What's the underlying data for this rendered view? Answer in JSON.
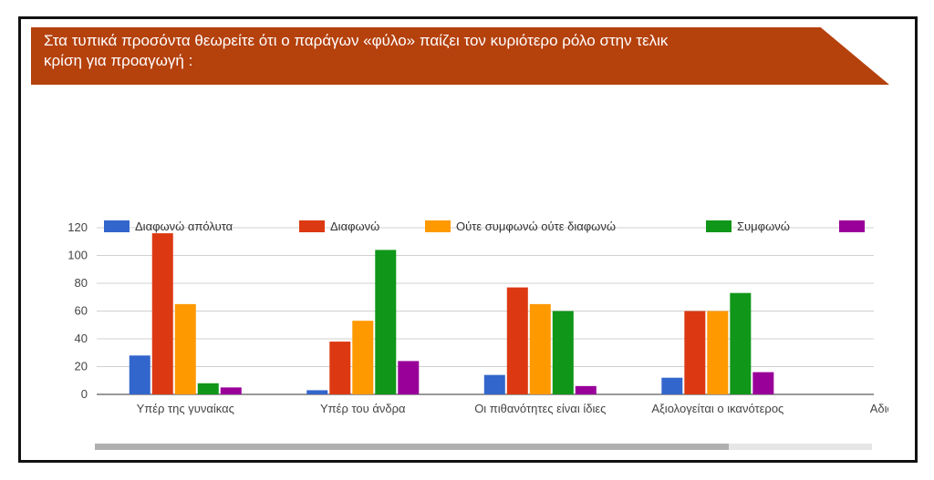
{
  "banner": {
    "line1": "Στα τυπικά προσόντα θεωρείτε ότι ο παράγων «φύλο» παίζει τον κυριότερο ρόλο στην τελικ",
    "line2": "κρίση για προαγωγή :"
  },
  "chart_data": {
    "type": "bar",
    "title": "",
    "xlabel": "",
    "ylabel": "",
    "ylim": [
      0,
      120
    ],
    "yticks": [
      0,
      20,
      40,
      60,
      80,
      100,
      120
    ],
    "grid": true,
    "legend_position": "top",
    "categories": [
      "Υπέρ της γυναίκας",
      "Υπέρ του άνδρα",
      "Οι πιθανότητες είναι ίδιες",
      "Αξιολογείται ο ικανότερος",
      "Αδιαφέρο"
    ],
    "series": [
      {
        "name": "Διαφωνώ απόλυτα",
        "color": "#3366cc",
        "values": [
          28,
          3,
          14,
          12,
          null
        ]
      },
      {
        "name": "Διαφωνώ",
        "color": "#dc3912",
        "values": [
          116,
          38,
          77,
          60,
          null
        ]
      },
      {
        "name": "Ούτε συμφωνώ ούτε διαφωνώ",
        "color": "#ff9900",
        "values": [
          65,
          53,
          65,
          60,
          null
        ]
      },
      {
        "name": "Συμφωνώ",
        "color": "#109618",
        "values": [
          8,
          104,
          60,
          73,
          null
        ]
      },
      {
        "name": "",
        "color": "#990099",
        "values": [
          5,
          24,
          6,
          16,
          null
        ]
      }
    ]
  }
}
